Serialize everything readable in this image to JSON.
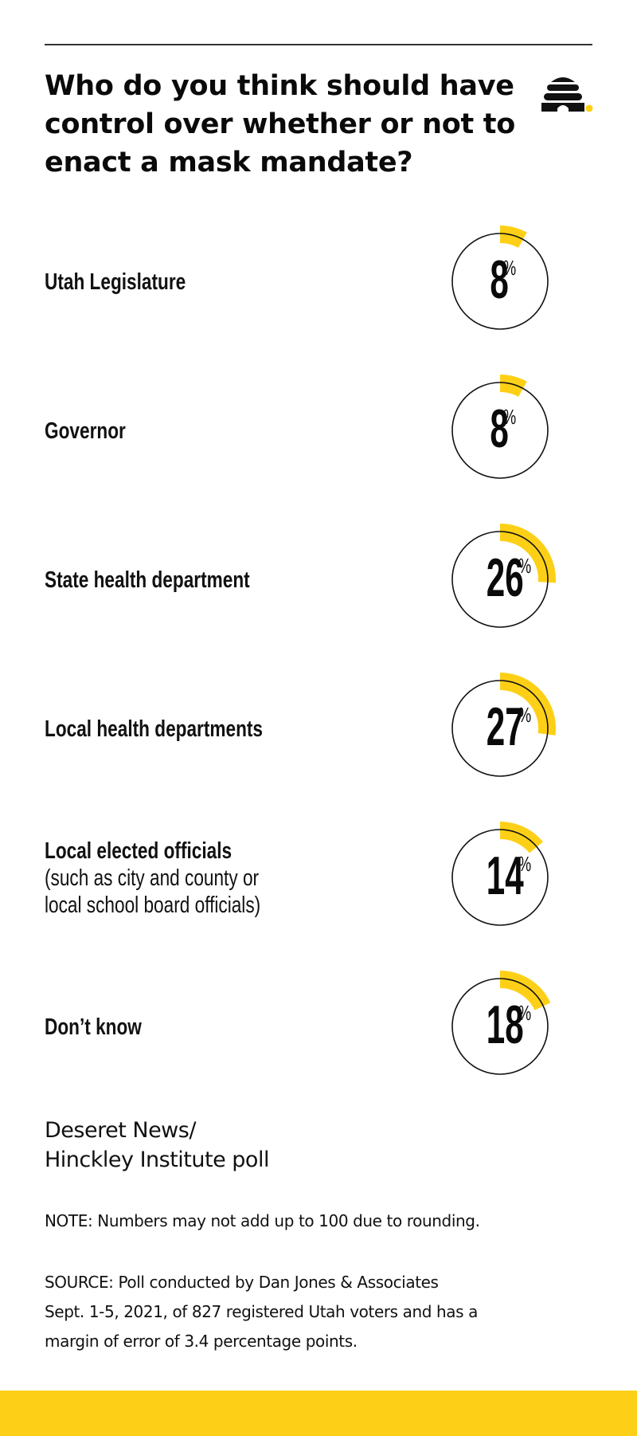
{
  "header": {
    "title_lines": [
      "Who do you think should have",
      "control over whether or not to",
      "enact a mask mandate?"
    ],
    "logo_icon": "beehive-icon"
  },
  "colors": {
    "accent": "#fdd017",
    "text": "#111111",
    "rule": "#333333",
    "circle_stroke": "#111111"
  },
  "rows": [
    {
      "label_bold": "Utah Legislature",
      "label_extra": [],
      "value": 8,
      "value_text": "8",
      "pct_sign": "%"
    },
    {
      "label_bold": "Governor",
      "label_extra": [],
      "value": 8,
      "value_text": "8",
      "pct_sign": "%"
    },
    {
      "label_bold": "State health department",
      "label_extra": [],
      "value": 26,
      "value_text": "26",
      "pct_sign": "%"
    },
    {
      "label_bold": "Local health departments",
      "label_extra": [],
      "value": 27,
      "value_text": "27",
      "pct_sign": "%"
    },
    {
      "label_bold": "Local elected officials",
      "label_extra": [
        "(such as city and county or",
        "local school board officials)"
      ],
      "value": 14,
      "value_text": "14",
      "pct_sign": "%"
    },
    {
      "label_bold": "Don’t know",
      "label_extra": [],
      "value": 18,
      "value_text": "18",
      "pct_sign": "%"
    }
  ],
  "footer": {
    "source_title_lines": [
      "Deseret News/",
      "Hinckley Institute poll"
    ],
    "note": "NOTE: Numbers may not add up to 100 due to rounding.",
    "source_lines": [
      "SOURCE: Poll conducted by Dan Jones & Associates",
      "Sept. 1-5, 2021, of 827 registered Utah voters and has a",
      "margin of error of 3.4 percentage points."
    ]
  },
  "chart_data": {
    "type": "pie",
    "subtype": "radial-progress",
    "title": "Who do you think should have control over whether or not to enact a mask mandate?",
    "categories": [
      "Utah Legislature",
      "Governor",
      "State health department",
      "Local health departments",
      "Local elected officials (such as city and county or local school board officials)",
      "Don’t know"
    ],
    "values": [
      8,
      8,
      26,
      27,
      14,
      18
    ],
    "unit": "%",
    "source": "Deseret News/Hinckley Institute poll",
    "note": "Numbers may not add up to 100 due to rounding.",
    "legend": "none"
  }
}
